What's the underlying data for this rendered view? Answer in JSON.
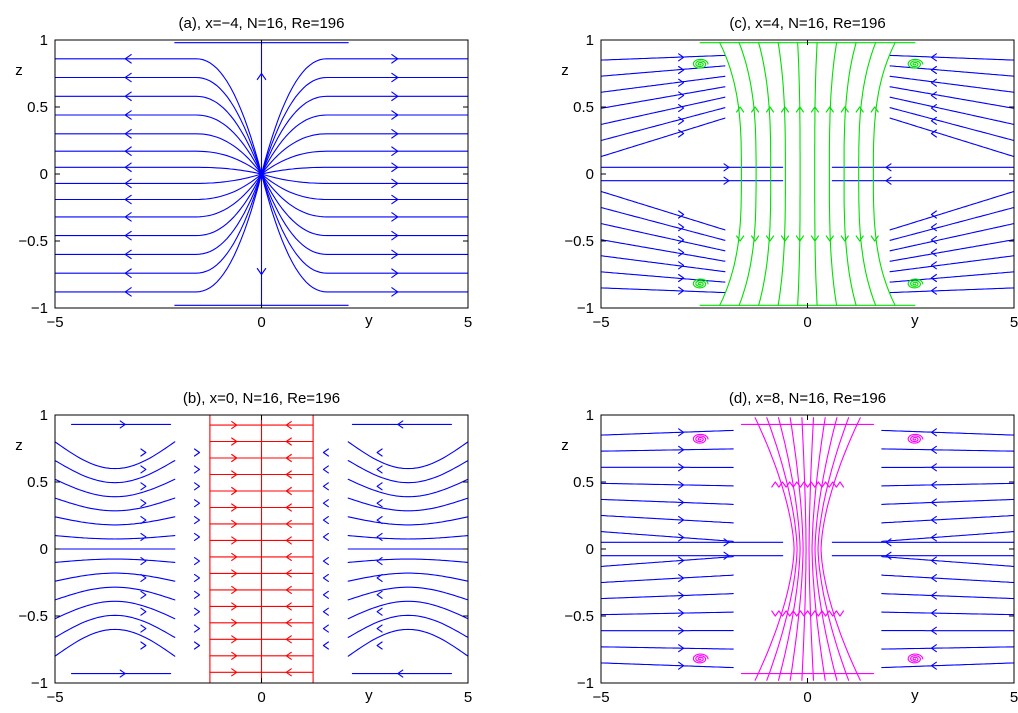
{
  "figure": {
    "chart_data": [
      {
        "type": "line",
        "title": "(a), x=−4, N=16, Re=196",
        "xlabel": "y",
        "ylabel": "z",
        "xlim": [
          -5,
          5
        ],
        "ylim": [
          -1,
          1
        ],
        "xticks": [
          "−5",
          "0",
          "5"
        ],
        "yticks": [
          "1",
          "0.5",
          "0",
          "−0.5",
          "−1"
        ],
        "series": [
          {
            "color": "#0000ff",
            "pattern": "source-at-origin",
            "lines": 16
          }
        ]
      },
      {
        "type": "line",
        "title": "(c), x=4, N=16, Re=196",
        "xlabel": "y",
        "ylabel": "z",
        "xlim": [
          -5,
          5
        ],
        "ylim": [
          -1,
          1
        ],
        "xticks": [
          "−5",
          "0",
          "5"
        ],
        "yticks": [
          "1",
          "0.5",
          "0",
          "−0.5",
          "−1"
        ],
        "series": [
          {
            "color": "#0000ff",
            "pattern": "outer-vortices",
            "lines": 14
          },
          {
            "color": "#00e000",
            "pattern": "core-band",
            "lines": 10
          }
        ]
      },
      {
        "type": "line",
        "title": "(b), x=0, N=16, Re=196",
        "xlabel": "y",
        "ylabel": "z",
        "xlim": [
          -5,
          5
        ],
        "ylim": [
          -1,
          1
        ],
        "xticks": [
          "−5",
          "0",
          "5"
        ],
        "yticks": [
          "1",
          "0.5",
          "0",
          "−0.5",
          "−1"
        ],
        "series": [
          {
            "color": "#0000ff",
            "pattern": "side-cells",
            "lines": 14
          },
          {
            "color": "#ff0000",
            "pattern": "core-band",
            "lines": 16
          }
        ]
      },
      {
        "type": "line",
        "title": "(d), x=8, N=16, Re=196",
        "xlabel": "y",
        "ylabel": "z",
        "xlim": [
          -5,
          5
        ],
        "ylim": [
          -1,
          1
        ],
        "xticks": [
          "−5",
          "0",
          "5"
        ],
        "yticks": [
          "1",
          "0.5",
          "0",
          "−0.5",
          "−1"
        ],
        "series": [
          {
            "color": "#0000ff",
            "pattern": "outer-vortices",
            "lines": 14
          },
          {
            "color": "#ff00ff",
            "pattern": "hourglass",
            "lines": 10
          }
        ]
      }
    ]
  }
}
